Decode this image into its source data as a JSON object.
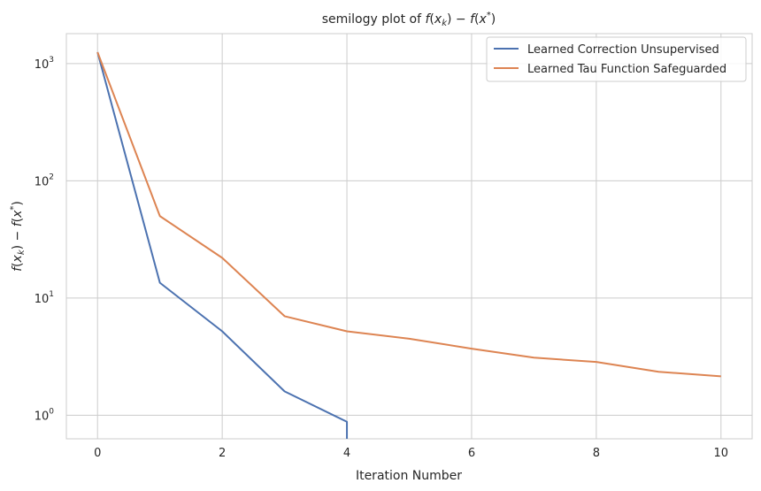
{
  "chart_data": {
    "type": "line",
    "title": "semilogy plot of f(x_k) − f(x*)",
    "title_parts": {
      "prefix": "semilogy plot of "
    },
    "xlabel": "Iteration Number",
    "ylabel": "f(x_k) − f(x*)",
    "yscale": "log",
    "xlim": [
      -0.5,
      10.5
    ],
    "ylim": [
      0.63,
      1800
    ],
    "grid": true,
    "legend_position": "top-right",
    "x_ticks": [
      0,
      2,
      4,
      6,
      8,
      10
    ],
    "x_tick_labels": [
      "0",
      "2",
      "4",
      "6",
      "8",
      "10"
    ],
    "y_ticks": [
      1,
      10,
      100,
      1000
    ],
    "y_tick_labels": [
      {
        "base": "10",
        "exp": "0"
      },
      {
        "base": "10",
        "exp": "1"
      },
      {
        "base": "10",
        "exp": "2"
      },
      {
        "base": "10",
        "exp": "3"
      }
    ],
    "series": [
      {
        "name": "Learned Correction Unsupervised",
        "color": "#4c72b0",
        "x": [
          0,
          1,
          2,
          3,
          4,
          4
        ],
        "y": [
          1250,
          13.5,
          5.2,
          1.6,
          0.88,
          0.63
        ]
      },
      {
        "name": "Learned Tau Function Safeguarded",
        "color": "#dd8452",
        "x": [
          0,
          1,
          2,
          3,
          4,
          5,
          6,
          7,
          8,
          9,
          10
        ],
        "y": [
          1250,
          50,
          22,
          7,
          5.2,
          4.5,
          3.7,
          3.1,
          2.85,
          2.35,
          2.15
        ]
      }
    ]
  }
}
